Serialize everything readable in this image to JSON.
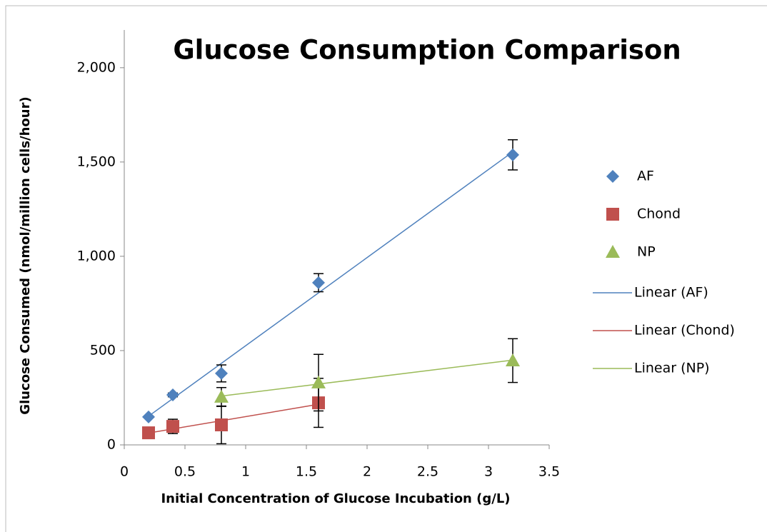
{
  "chart_data": {
    "type": "scatter",
    "title": "Glucose Consumption Comparison",
    "xlabel": "Initial Concentration of Glucose Incubation (g/L)",
    "ylabel": "Glucose Consumed (nmol/million cells/hour)",
    "xlim": [
      0,
      3.5
    ],
    "xticks": [
      0,
      0.5,
      1,
      1.5,
      2,
      2.5,
      3,
      3.5
    ],
    "ylim": [
      0,
      2200
    ],
    "yticks": [
      0,
      500,
      {
        "value": 1000,
        "label": "1,000"
      },
      {
        "value": 1500,
        "label": "1,500"
      },
      {
        "value": 2000,
        "label": "2,000"
      }
    ],
    "legend": "right",
    "series": [
      {
        "name": "AF",
        "color": "#4f81bd",
        "marker": "diamond",
        "x": [
          0.2,
          0.4,
          0.8,
          1.6,
          3.2
        ],
        "values": [
          148,
          265,
          379,
          860,
          1538
        ],
        "errors": [
          5,
          10,
          45,
          48,
          80
        ]
      },
      {
        "name": "Chond",
        "color": "#c0504d",
        "marker": "square",
        "x": [
          0.2,
          0.4,
          0.8,
          1.6
        ],
        "values": [
          64,
          98,
          106,
          223
        ],
        "errors": [
          5,
          38,
          100,
          130
        ]
      },
      {
        "name": "NP",
        "color": "#9bbb59",
        "marker": "triangle",
        "x": [
          0.8,
          1.6,
          3.2
        ],
        "values": [
          254,
          330,
          447
        ],
        "errors": [
          50,
          150,
          116
        ]
      }
    ],
    "trendlines": [
      {
        "name": "Linear (AF)",
        "series": 0,
        "color": "#4f81bd"
      },
      {
        "name": "Linear (Chond)",
        "series": 1,
        "color": "#c0504d"
      },
      {
        "name": "Linear (NP)",
        "series": 2,
        "color": "#9bbb59"
      }
    ]
  }
}
